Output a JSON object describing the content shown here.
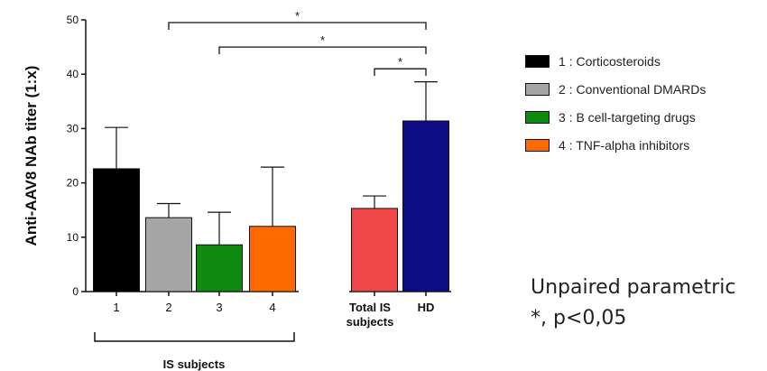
{
  "chart_data": {
    "type": "bar",
    "ylabel": "Anti-AAV8 NAb titer (1:x)",
    "ylim": [
      0,
      50
    ],
    "yticks": [
      0,
      10,
      20,
      30,
      40,
      50
    ],
    "bars": [
      {
        "label": "1",
        "value": 22.6,
        "error": 7.6,
        "color": "#000000"
      },
      {
        "label": "2",
        "value": 13.6,
        "error": 2.6,
        "color": "#a6a6a6"
      },
      {
        "label": "3",
        "value": 8.6,
        "error": 6.0,
        "color": "#118a11"
      },
      {
        "label": "4",
        "value": 12.0,
        "error": 10.9,
        "color": "#ff6a00"
      },
      {
        "label": "Total IS\nsubjects",
        "value": 15.3,
        "error": 2.3,
        "color": "#f04848"
      },
      {
        "label": "HD",
        "value": 31.4,
        "error": 7.2,
        "color": "#0d0d85"
      }
    ],
    "group_label": "IS subjects",
    "significance": [
      {
        "from": 1,
        "to": 5,
        "label": "*",
        "y": 49.5
      },
      {
        "from": 2,
        "to": 5,
        "label": "*",
        "y": 45
      },
      {
        "from": 4,
        "to": 5,
        "label": "*",
        "y": 41
      }
    ],
    "legend": [
      {
        "text": "1 : Corticosteroids",
        "color": "#000000"
      },
      {
        "text": "2 : Conventional DMARDs",
        "color": "#a6a6a6"
      },
      {
        "text": "3 : B cell-targeting drugs",
        "color": "#118a11"
      },
      {
        "text": "4 : TNF-alpha inhibitors",
        "color": "#ff6a00"
      }
    ]
  },
  "note": {
    "line1": "Unpaired parametric",
    "line2": "*, p<0,05"
  }
}
